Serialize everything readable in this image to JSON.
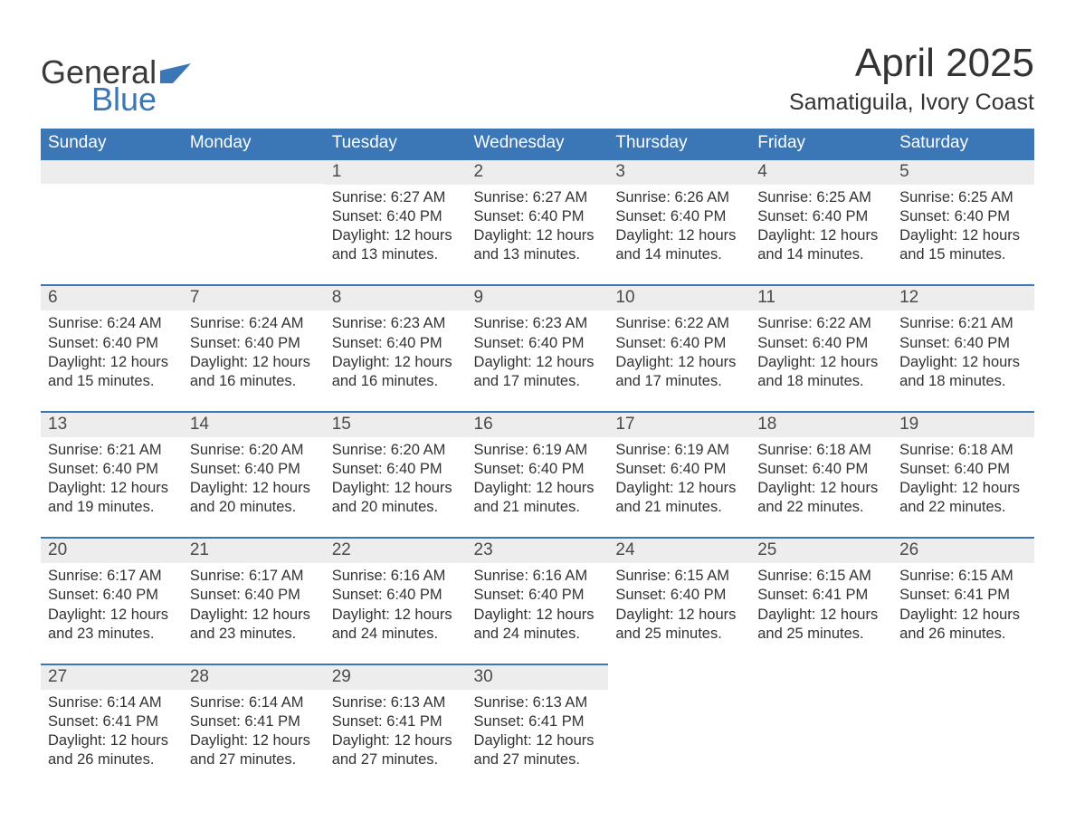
{
  "brand": {
    "word1": "General",
    "word2": "Blue",
    "word1_color": "#3a3a3a",
    "word2_color": "#3b76b6"
  },
  "title": "April 2025",
  "location": "Samatiguila, Ivory Coast",
  "colors": {
    "header_bg": "#3b76b6",
    "header_text": "#ffffff",
    "daybar_bg": "#ededed",
    "daybar_border": "#3b76b6",
    "body_text": "#333333",
    "page_bg": "#ffffff"
  },
  "typography": {
    "title_fontsize": 44,
    "location_fontsize": 25,
    "weekday_fontsize": 19,
    "daynum_fontsize": 19,
    "body_fontsize": 16.5
  },
  "weekdays": [
    "Sunday",
    "Monday",
    "Tuesday",
    "Wednesday",
    "Thursday",
    "Friday",
    "Saturday"
  ],
  "weeks": [
    [
      null,
      null,
      {
        "n": "1",
        "sunrise": "Sunrise: 6:27 AM",
        "sunset": "Sunset: 6:40 PM",
        "daylight": "Daylight: 12 hours and 13 minutes."
      },
      {
        "n": "2",
        "sunrise": "Sunrise: 6:27 AM",
        "sunset": "Sunset: 6:40 PM",
        "daylight": "Daylight: 12 hours and 13 minutes."
      },
      {
        "n": "3",
        "sunrise": "Sunrise: 6:26 AM",
        "sunset": "Sunset: 6:40 PM",
        "daylight": "Daylight: 12 hours and 14 minutes."
      },
      {
        "n": "4",
        "sunrise": "Sunrise: 6:25 AM",
        "sunset": "Sunset: 6:40 PM",
        "daylight": "Daylight: 12 hours and 14 minutes."
      },
      {
        "n": "5",
        "sunrise": "Sunrise: 6:25 AM",
        "sunset": "Sunset: 6:40 PM",
        "daylight": "Daylight: 12 hours and 15 minutes."
      }
    ],
    [
      {
        "n": "6",
        "sunrise": "Sunrise: 6:24 AM",
        "sunset": "Sunset: 6:40 PM",
        "daylight": "Daylight: 12 hours and 15 minutes."
      },
      {
        "n": "7",
        "sunrise": "Sunrise: 6:24 AM",
        "sunset": "Sunset: 6:40 PM",
        "daylight": "Daylight: 12 hours and 16 minutes."
      },
      {
        "n": "8",
        "sunrise": "Sunrise: 6:23 AM",
        "sunset": "Sunset: 6:40 PM",
        "daylight": "Daylight: 12 hours and 16 minutes."
      },
      {
        "n": "9",
        "sunrise": "Sunrise: 6:23 AM",
        "sunset": "Sunset: 6:40 PM",
        "daylight": "Daylight: 12 hours and 17 minutes."
      },
      {
        "n": "10",
        "sunrise": "Sunrise: 6:22 AM",
        "sunset": "Sunset: 6:40 PM",
        "daylight": "Daylight: 12 hours and 17 minutes."
      },
      {
        "n": "11",
        "sunrise": "Sunrise: 6:22 AM",
        "sunset": "Sunset: 6:40 PM",
        "daylight": "Daylight: 12 hours and 18 minutes."
      },
      {
        "n": "12",
        "sunrise": "Sunrise: 6:21 AM",
        "sunset": "Sunset: 6:40 PM",
        "daylight": "Daylight: 12 hours and 18 minutes."
      }
    ],
    [
      {
        "n": "13",
        "sunrise": "Sunrise: 6:21 AM",
        "sunset": "Sunset: 6:40 PM",
        "daylight": "Daylight: 12 hours and 19 minutes."
      },
      {
        "n": "14",
        "sunrise": "Sunrise: 6:20 AM",
        "sunset": "Sunset: 6:40 PM",
        "daylight": "Daylight: 12 hours and 20 minutes."
      },
      {
        "n": "15",
        "sunrise": "Sunrise: 6:20 AM",
        "sunset": "Sunset: 6:40 PM",
        "daylight": "Daylight: 12 hours and 20 minutes."
      },
      {
        "n": "16",
        "sunrise": "Sunrise: 6:19 AM",
        "sunset": "Sunset: 6:40 PM",
        "daylight": "Daylight: 12 hours and 21 minutes."
      },
      {
        "n": "17",
        "sunrise": "Sunrise: 6:19 AM",
        "sunset": "Sunset: 6:40 PM",
        "daylight": "Daylight: 12 hours and 21 minutes."
      },
      {
        "n": "18",
        "sunrise": "Sunrise: 6:18 AM",
        "sunset": "Sunset: 6:40 PM",
        "daylight": "Daylight: 12 hours and 22 minutes."
      },
      {
        "n": "19",
        "sunrise": "Sunrise: 6:18 AM",
        "sunset": "Sunset: 6:40 PM",
        "daylight": "Daylight: 12 hours and 22 minutes."
      }
    ],
    [
      {
        "n": "20",
        "sunrise": "Sunrise: 6:17 AM",
        "sunset": "Sunset: 6:40 PM",
        "daylight": "Daylight: 12 hours and 23 minutes."
      },
      {
        "n": "21",
        "sunrise": "Sunrise: 6:17 AM",
        "sunset": "Sunset: 6:40 PM",
        "daylight": "Daylight: 12 hours and 23 minutes."
      },
      {
        "n": "22",
        "sunrise": "Sunrise: 6:16 AM",
        "sunset": "Sunset: 6:40 PM",
        "daylight": "Daylight: 12 hours and 24 minutes."
      },
      {
        "n": "23",
        "sunrise": "Sunrise: 6:16 AM",
        "sunset": "Sunset: 6:40 PM",
        "daylight": "Daylight: 12 hours and 24 minutes."
      },
      {
        "n": "24",
        "sunrise": "Sunrise: 6:15 AM",
        "sunset": "Sunset: 6:40 PM",
        "daylight": "Daylight: 12 hours and 25 minutes."
      },
      {
        "n": "25",
        "sunrise": "Sunrise: 6:15 AM",
        "sunset": "Sunset: 6:41 PM",
        "daylight": "Daylight: 12 hours and 25 minutes."
      },
      {
        "n": "26",
        "sunrise": "Sunrise: 6:15 AM",
        "sunset": "Sunset: 6:41 PM",
        "daylight": "Daylight: 12 hours and 26 minutes."
      }
    ],
    [
      {
        "n": "27",
        "sunrise": "Sunrise: 6:14 AM",
        "sunset": "Sunset: 6:41 PM",
        "daylight": "Daylight: 12 hours and 26 minutes."
      },
      {
        "n": "28",
        "sunrise": "Sunrise: 6:14 AM",
        "sunset": "Sunset: 6:41 PM",
        "daylight": "Daylight: 12 hours and 27 minutes."
      },
      {
        "n": "29",
        "sunrise": "Sunrise: 6:13 AM",
        "sunset": "Sunset: 6:41 PM",
        "daylight": "Daylight: 12 hours and 27 minutes."
      },
      {
        "n": "30",
        "sunrise": "Sunrise: 6:13 AM",
        "sunset": "Sunset: 6:41 PM",
        "daylight": "Daylight: 12 hours and 27 minutes."
      },
      null,
      null,
      null
    ]
  ]
}
